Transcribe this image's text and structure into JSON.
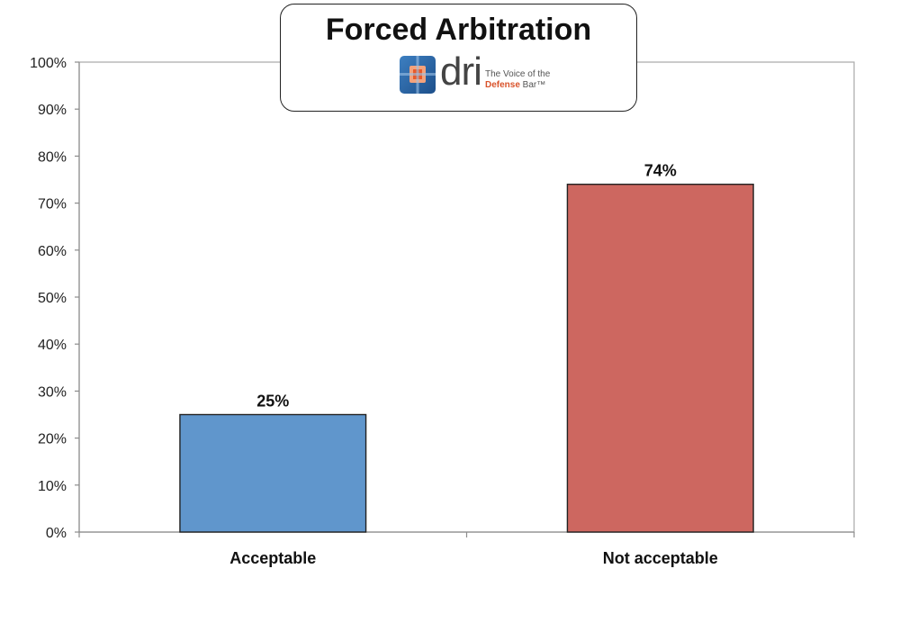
{
  "chart_data": {
    "type": "bar",
    "title": "Forced Arbitration",
    "categories": [
      "Acceptable",
      "Not acceptable"
    ],
    "values": [
      25,
      74
    ],
    "value_labels": [
      "25%",
      "74%"
    ],
    "colors": [
      "#6096cc",
      "#cd6760"
    ],
    "ylim": [
      0,
      100
    ],
    "yticks": [
      0,
      10,
      20,
      30,
      40,
      50,
      60,
      70,
      80,
      90,
      100
    ],
    "ytick_labels": [
      "0%",
      "10%",
      "20%",
      "30%",
      "40%",
      "50%",
      "60%",
      "70%",
      "80%",
      "90%",
      "100%"
    ],
    "grid": false,
    "xlabel": "",
    "ylabel": ""
  },
  "logo": {
    "wordmark": "dri",
    "tagline_line1": "The Voice of the",
    "tagline_accent": "Defense",
    "tagline_rest": " Bar™"
  }
}
